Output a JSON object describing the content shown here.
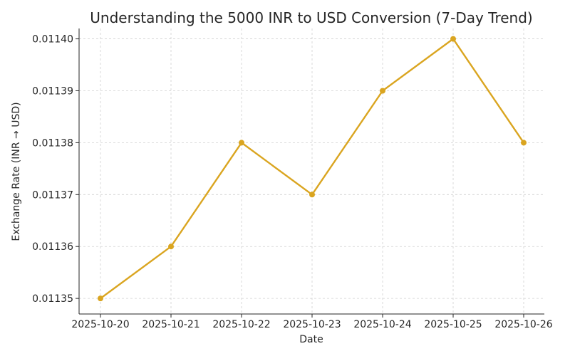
{
  "chart_data": {
    "type": "line",
    "title": "Understanding the 5000 INR to USD Conversion (7-Day Trend)",
    "xlabel": "Date",
    "ylabel": "Exchange Rate (INR → USD)",
    "x": [
      "2025-10-20",
      "2025-10-21",
      "2025-10-22",
      "2025-10-23",
      "2025-10-24",
      "2025-10-25",
      "2025-10-26"
    ],
    "series": [
      {
        "values": [
          0.01135,
          0.01136,
          0.01138,
          0.01137,
          0.01139,
          0.0114,
          0.01138
        ],
        "color": "#DAA520",
        "marker": "circle"
      }
    ],
    "yticks": [
      "0.01135",
      "0.01136",
      "0.01137",
      "0.01138",
      "0.01139",
      "0.01140"
    ],
    "ylim": [
      0.011347,
      0.011402
    ],
    "grid": true,
    "grid_style": "dashed"
  }
}
